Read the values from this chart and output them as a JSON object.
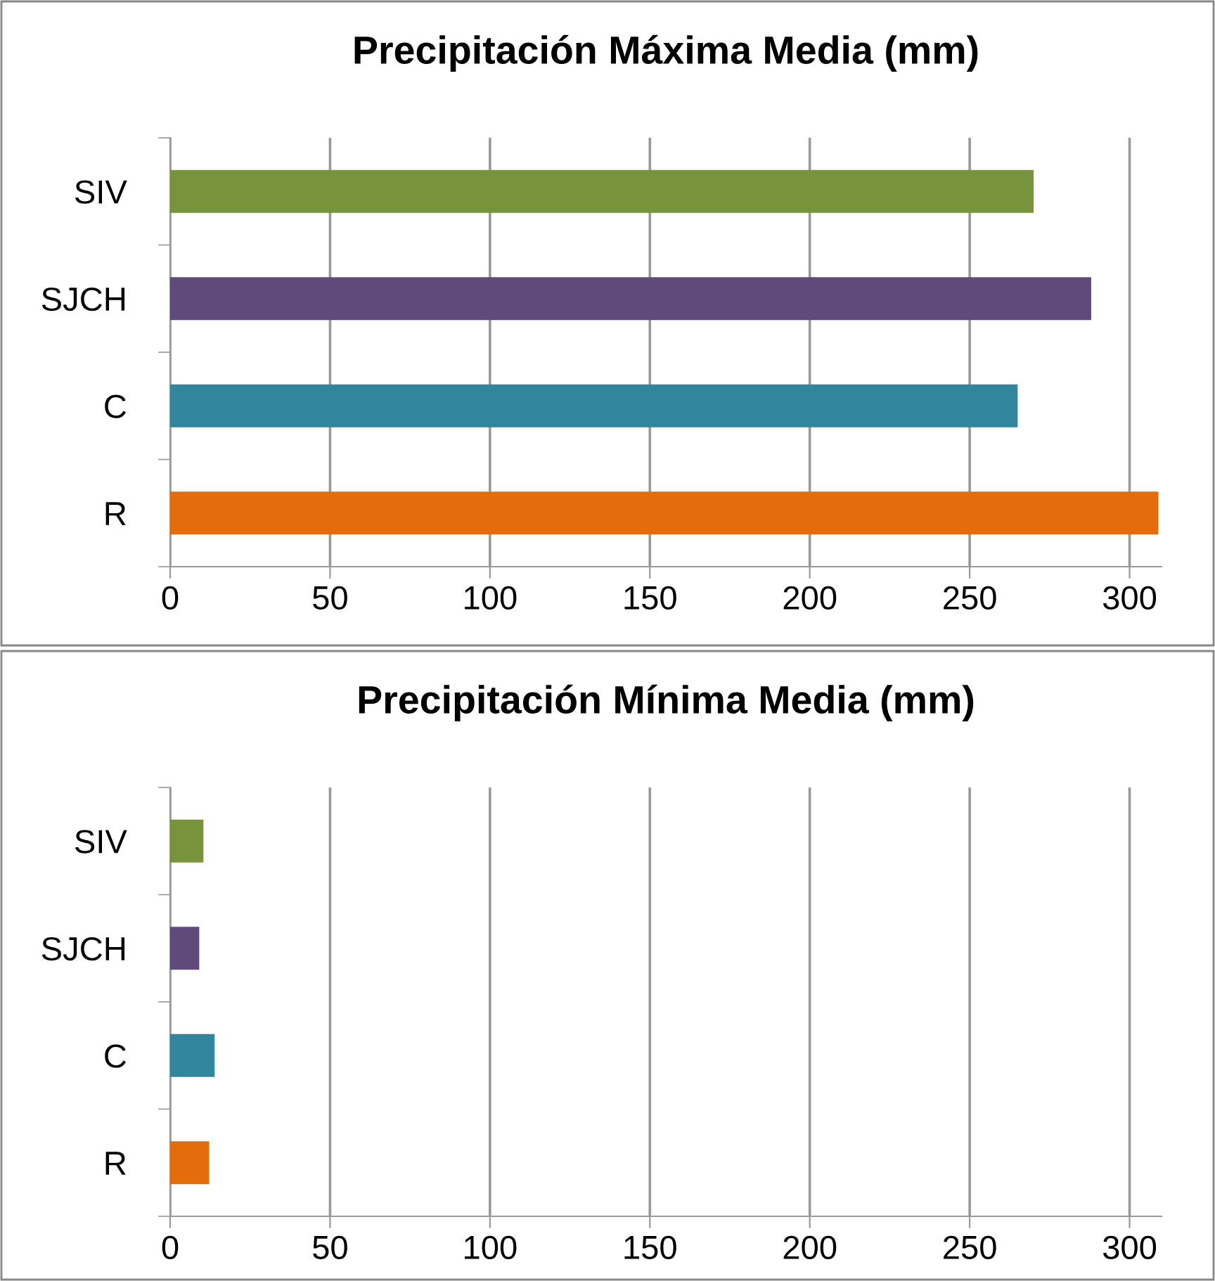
{
  "chart_data": [
    {
      "type": "bar",
      "orientation": "horizontal",
      "title": "Precipitación Máxima Media (mm)",
      "categories": [
        "SIV",
        "SJCH",
        "C",
        "R"
      ],
      "values": [
        270,
        288,
        265,
        309
      ],
      "colors": [
        "#77933c",
        "#604a7b",
        "#31859c",
        "#e46c0a"
      ],
      "xlim": [
        0,
        310
      ],
      "xticks": [
        0,
        50,
        100,
        150,
        200,
        250,
        300
      ],
      "grid": "x"
    },
    {
      "type": "bar",
      "orientation": "horizontal",
      "title": "Precipitación Mínima Media (mm)",
      "categories": [
        "SIV",
        "SJCH",
        "C",
        "R"
      ],
      "values": [
        10.4,
        9.1,
        13.9,
        12.2
      ],
      "colors": [
        "#77933c",
        "#604a7b",
        "#31859c",
        "#e46c0a"
      ],
      "xlim": [
        0,
        310
      ],
      "xticks": [
        0,
        50,
        100,
        150,
        200,
        250,
        300
      ],
      "grid": "x"
    }
  ]
}
